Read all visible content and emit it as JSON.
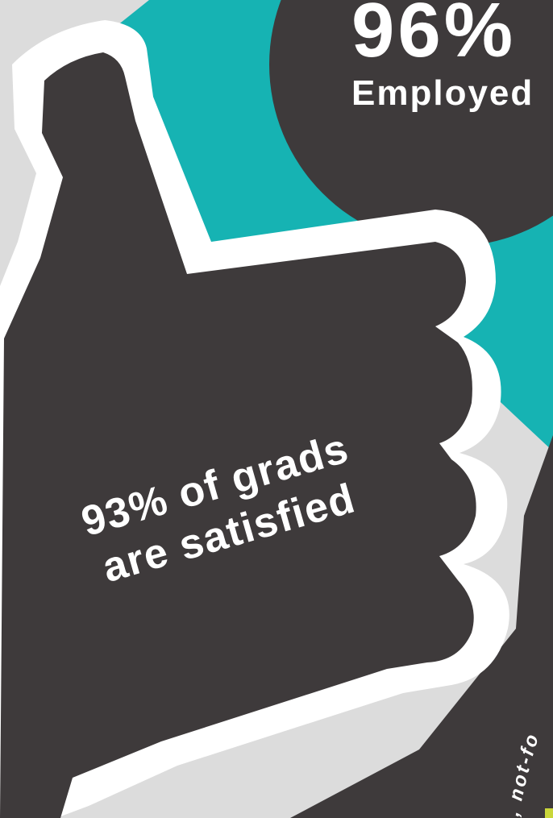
{
  "colors": {
    "background_light": "#dcdcdc",
    "teal": "#16b3b3",
    "charcoal": "#3e3a3b",
    "white": "#ffffff",
    "accent_yellow": "#c9d63a"
  },
  "icons": [
    "thumbs-up-icon"
  ],
  "employed_stat": {
    "value": "96%",
    "label": "Employed"
  },
  "satisfaction_stat": {
    "line1": "93% of grads",
    "line2": "are satisfied"
  },
  "arc_text": "e, not-fo"
}
